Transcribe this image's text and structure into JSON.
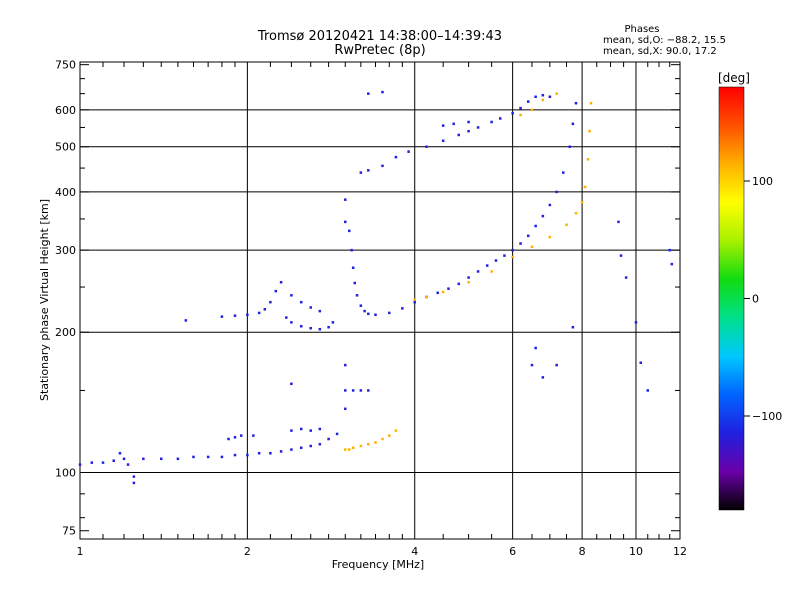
{
  "title": "Tromsø 20120421 14:38:00–14:39:43",
  "subtitle": "RwPretec (8p)",
  "phases_box": {
    "heading": "Phases",
    "line_o": "mean, sd,O: −88.2, 15.5",
    "line_x": "mean, sd,X:  90.0, 17.2"
  },
  "colorbar": {
    "unit_label": "[deg]",
    "tick_labels": [
      "100",
      "0",
      "−100"
    ],
    "tick_values": [
      100,
      0,
      -100
    ],
    "range": [
      -180,
      180
    ],
    "colors": [
      "#000000",
      "#6a00a8",
      "#2020e0",
      "#0064ff",
      "#00c8ff",
      "#00e08a",
      "#10dc10",
      "#a8f000",
      "#ffff00",
      "#ffb000",
      "#ff5000",
      "#ff0000"
    ]
  },
  "chart_data": {
    "type": "scatter",
    "title": "Tromsø 20120421 14:38:00–14:39:43",
    "subtitle": "RwPretec (8p)",
    "xlabel": "Frequency [MHz]",
    "ylabel": "Stationary phase Virtual Height [km]",
    "x_scale": "log",
    "y_scale": "log",
    "xlim": [
      1,
      12
    ],
    "ylim": [
      72,
      760
    ],
    "x_ticks": [
      1,
      2,
      4,
      6,
      8,
      10,
      12
    ],
    "y_ticks": [
      75,
      100,
      200,
      300,
      400,
      500,
      600,
      750
    ],
    "x_minor_ticks": [
      1.1,
      1.2,
      1.3,
      1.4,
      1.5,
      1.6,
      1.7,
      1.8,
      1.9,
      2.2,
      2.4,
      2.6,
      2.8,
      3,
      3.2,
      3.4,
      3.6,
      3.8,
      4.5,
      5,
      5.5,
      6.5,
      7,
      7.5,
      8.5,
      9,
      9.5,
      10.5,
      11,
      11.5
    ],
    "y_minor_ticks": [
      80,
      90,
      150,
      250,
      350,
      450,
      550,
      650,
      700
    ],
    "grid": true,
    "series": [
      {
        "color_deg": -110,
        "points": [
          [
            1,
            104
          ],
          [
            1.05,
            105
          ],
          [
            1.1,
            105
          ],
          [
            1.15,
            106
          ],
          [
            1.2,
            107
          ],
          [
            1.3,
            107
          ],
          [
            1.4,
            107
          ],
          [
            1.5,
            107
          ],
          [
            1.6,
            108
          ],
          [
            1.7,
            108
          ],
          [
            1.8,
            108
          ],
          [
            1.9,
            109
          ],
          [
            2.0,
            109
          ],
          [
            2.1,
            110
          ],
          [
            2.2,
            110
          ],
          [
            2.3,
            111
          ],
          [
            2.4,
            112
          ],
          [
            2.5,
            113
          ],
          [
            2.6,
            114
          ],
          [
            2.7,
            115
          ],
          [
            2.8,
            118
          ],
          [
            2.9,
            121
          ],
          [
            1.25,
            95
          ],
          [
            1.25,
            98
          ],
          [
            1.18,
            110
          ],
          [
            1.22,
            104
          ]
        ]
      },
      {
        "color_deg": -115,
        "points": [
          [
            1.85,
            118
          ],
          [
            1.9,
            119
          ],
          [
            1.95,
            120
          ],
          [
            2.05,
            120
          ],
          [
            2.4,
            123
          ],
          [
            2.5,
            124
          ],
          [
            2.6,
            123
          ],
          [
            2.7,
            124
          ],
          [
            3.0,
            150
          ],
          [
            3.1,
            150
          ],
          [
            3.2,
            150
          ],
          [
            3.3,
            150
          ],
          [
            2.4,
            155
          ],
          [
            3.0,
            137
          ],
          [
            3.0,
            170
          ]
        ]
      },
      {
        "color_deg": 110,
        "points": [
          [
            3.0,
            112
          ],
          [
            3.05,
            112
          ],
          [
            3.1,
            113
          ],
          [
            3.2,
            114
          ],
          [
            3.3,
            115
          ],
          [
            3.4,
            116
          ],
          [
            3.5,
            118
          ],
          [
            3.6,
            120
          ],
          [
            3.7,
            123
          ]
        ]
      },
      {
        "color_deg": -120,
        "points": [
          [
            1.55,
            212
          ],
          [
            1.8,
            216
          ],
          [
            1.9,
            217
          ],
          [
            2.0,
            218
          ],
          [
            2.1,
            220
          ],
          [
            2.15,
            224
          ],
          [
            2.2,
            232
          ],
          [
            2.25,
            245
          ],
          [
            2.3,
            256
          ],
          [
            2.4,
            240
          ],
          [
            2.5,
            232
          ],
          [
            2.6,
            226
          ],
          [
            2.7,
            222
          ],
          [
            2.35,
            215
          ],
          [
            2.4,
            210
          ],
          [
            2.5,
            206
          ],
          [
            2.6,
            204
          ],
          [
            2.7,
            203
          ],
          [
            2.8,
            205
          ],
          [
            2.85,
            210
          ]
        ]
      },
      {
        "color_deg": -125,
        "points": [
          [
            3.0,
            385
          ],
          [
            3.0,
            345
          ],
          [
            3.05,
            330
          ],
          [
            3.08,
            300
          ],
          [
            3.1,
            275
          ],
          [
            3.12,
            255
          ],
          [
            3.15,
            240
          ],
          [
            3.2,
            228
          ],
          [
            3.25,
            222
          ],
          [
            3.3,
            219
          ],
          [
            3.4,
            218
          ],
          [
            3.6,
            220
          ],
          [
            3.8,
            225
          ],
          [
            4.0,
            232
          ],
          [
            4.2,
            238
          ],
          [
            4.4,
            243
          ],
          [
            4.6,
            248
          ],
          [
            4.8,
            254
          ],
          [
            5.0,
            262
          ],
          [
            5.2,
            270
          ],
          [
            5.4,
            278
          ],
          [
            5.6,
            285
          ],
          [
            5.8,
            292
          ],
          [
            6.0,
            300
          ],
          [
            6.2,
            310
          ],
          [
            6.4,
            322
          ],
          [
            6.6,
            338
          ],
          [
            6.8,
            355
          ],
          [
            7.0,
            375
          ],
          [
            7.2,
            400
          ],
          [
            7.4,
            440
          ],
          [
            7.6,
            500
          ],
          [
            7.7,
            560
          ],
          [
            7.8,
            620
          ]
        ]
      },
      {
        "color_deg": 100,
        "points": [
          [
            4.0,
            235
          ],
          [
            4.2,
            238
          ],
          [
            4.5,
            244
          ],
          [
            5.0,
            256
          ],
          [
            5.5,
            270
          ],
          [
            6.0,
            290
          ],
          [
            6.5,
            305
          ],
          [
            7.0,
            320
          ],
          [
            7.5,
            340
          ],
          [
            7.8,
            360
          ],
          [
            8.0,
            380
          ],
          [
            8.1,
            410
          ],
          [
            8.2,
            470
          ],
          [
            8.25,
            540
          ],
          [
            8.3,
            620
          ],
          [
            7.2,
            650
          ],
          [
            7.0,
            640
          ],
          [
            6.8,
            630
          ],
          [
            6.5,
            600
          ],
          [
            6.2,
            585
          ]
        ]
      },
      {
        "color_deg": -120,
        "points": [
          [
            3.2,
            440
          ],
          [
            3.3,
            445
          ],
          [
            3.5,
            455
          ],
          [
            3.7,
            475
          ],
          [
            3.9,
            488
          ],
          [
            4.2,
            500
          ],
          [
            4.5,
            515
          ],
          [
            4.8,
            530
          ],
          [
            5.0,
            540
          ],
          [
            5.2,
            550
          ],
          [
            5.5,
            565
          ],
          [
            5.7,
            575
          ],
          [
            6.0,
            590
          ],
          [
            6.2,
            605
          ],
          [
            6.4,
            625
          ],
          [
            6.6,
            640
          ],
          [
            6.8,
            645
          ],
          [
            7.0,
            640
          ],
          [
            4.5,
            555
          ],
          [
            4.7,
            560
          ],
          [
            5.0,
            565
          ]
        ]
      },
      {
        "color_deg": -100,
        "points": [
          [
            3.3,
            650
          ],
          [
            3.5,
            655
          ],
          [
            6.5,
            170
          ],
          [
            6.6,
            185
          ],
          [
            6.8,
            160
          ],
          [
            7.2,
            170
          ],
          [
            7.7,
            205
          ],
          [
            9.3,
            345
          ],
          [
            9.4,
            292
          ],
          [
            9.6,
            262
          ],
          [
            10.0,
            210
          ],
          [
            10.2,
            172
          ],
          [
            10.5,
            150
          ],
          [
            11.5,
            300
          ],
          [
            11.6,
            280
          ]
        ]
      }
    ]
  }
}
